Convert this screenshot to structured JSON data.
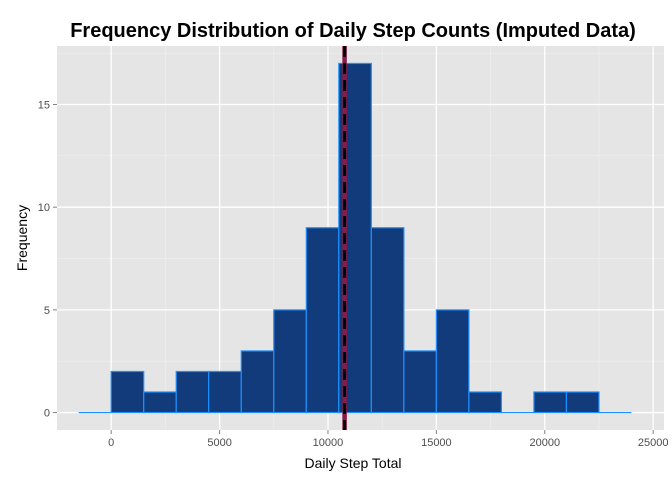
{
  "chart_data": {
    "type": "histogram",
    "title": "Frequency Distribution of Daily Step Counts (Imputed Data)",
    "xlabel": "Daily Step Total",
    "ylabel": "Frequency",
    "xlim": [
      -2500,
      25500
    ],
    "ylim": [
      -0.85,
      17.85
    ],
    "x_ticks": [
      0,
      5000,
      10000,
      15000,
      20000,
      25000
    ],
    "y_ticks": [
      0,
      5,
      10,
      15
    ],
    "grid": true,
    "bins": [
      {
        "x0": -1500,
        "x1": 0,
        "count": 0
      },
      {
        "x0": 0,
        "x1": 1500,
        "count": 2
      },
      {
        "x0": 1500,
        "x1": 3000,
        "count": 1
      },
      {
        "x0": 3000,
        "x1": 4500,
        "count": 2
      },
      {
        "x0": 4500,
        "x1": 6000,
        "count": 2
      },
      {
        "x0": 6000,
        "x1": 7500,
        "count": 3
      },
      {
        "x0": 7500,
        "x1": 9000,
        "count": 5
      },
      {
        "x0": 9000,
        "x1": 10500,
        "count": 9
      },
      {
        "x0": 10500,
        "x1": 12000,
        "count": 17
      },
      {
        "x0": 12000,
        "x1": 13500,
        "count": 9
      },
      {
        "x0": 13500,
        "x1": 15000,
        "count": 3
      },
      {
        "x0": 15000,
        "x1": 16500,
        "count": 5
      },
      {
        "x0": 16500,
        "x1": 18000,
        "count": 1
      },
      {
        "x0": 18000,
        "x1": 19500,
        "count": 0
      },
      {
        "x0": 19500,
        "x1": 21000,
        "count": 1
      },
      {
        "x0": 21000,
        "x1": 22500,
        "count": 1
      },
      {
        "x0": 22500,
        "x1": 24000,
        "count": 0
      }
    ],
    "vertical_lines": [
      {
        "x": 10766,
        "color": "#8b1a4a",
        "style": "solid"
      },
      {
        "x": 10766,
        "color": "#000000",
        "style": "dashed"
      }
    ],
    "colors": {
      "panel_background": "#e5e5e5",
      "grid_major": "#ffffff",
      "grid_minor": "#f0f0f0",
      "bar_fill": "#113b7a",
      "bar_outline": "#1e90ff"
    }
  }
}
